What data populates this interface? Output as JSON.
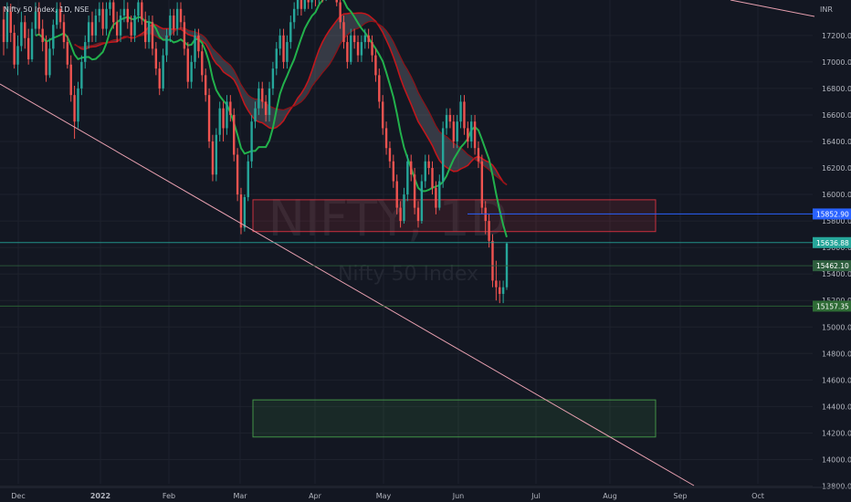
{
  "legend": "Nifty 50 Index, 1D, NSE",
  "watermark": {
    "symbol": "NIFTY, 1D",
    "name": "Nifty 50 Index"
  },
  "chart_data": {
    "type": "candlestick",
    "currency": "INR",
    "ylim": [
      13800,
      17400
    ],
    "y_ticks": [
      13800,
      14000,
      14200,
      14400,
      14600,
      14800,
      15000,
      15200,
      15400,
      15600,
      15800,
      16000,
      16200,
      16400,
      16600,
      16800,
      17000,
      17200
    ],
    "x_ticks": [
      "Dec",
      "2022",
      "Feb",
      "Mar",
      "Apr",
      "May",
      "Jun",
      "Jul",
      "Aug",
      "Sep",
      "Oct"
    ],
    "price_tags": [
      {
        "label": "15852.90",
        "value": 15852.9,
        "color": "#2962ff"
      },
      {
        "label": "15636.88",
        "value": 15636.88,
        "color": "#26a69a"
      },
      {
        "label": "15462.10",
        "value": 15462.1,
        "color": "#2e5e3e"
      },
      {
        "label": "15157.35",
        "value": 15157.35,
        "color": "#2e6b35"
      }
    ],
    "zones": [
      {
        "name": "supply-zone",
        "from": "Mar",
        "to": "Aug",
        "low": 15720,
        "high": 15960,
        "color": "#f23645"
      },
      {
        "name": "demand-zone",
        "from": "Mar",
        "to": "Aug",
        "low": 14170,
        "high": 14450,
        "color": "#4caf50"
      }
    ],
    "candles": [
      [
        17320,
        17150,
        17420,
        17050
      ],
      [
        17150,
        17380,
        17450,
        17100
      ],
      [
        17380,
        17220,
        17440,
        17150
      ],
      [
        17220,
        16980,
        17280,
        16950
      ],
      [
        16980,
        17120,
        17200,
        16900
      ],
      [
        17120,
        17300,
        17380,
        17080
      ],
      [
        17300,
        17180,
        17350,
        17100
      ],
      [
        17180,
        17020,
        17250,
        16980
      ],
      [
        17020,
        17250,
        17300,
        17000
      ],
      [
        17250,
        17380,
        17450,
        17200
      ],
      [
        17380,
        17250,
        17450,
        17200
      ],
      [
        17250,
        17150,
        17320,
        17080
      ],
      [
        17150,
        16900,
        17200,
        16850
      ],
      [
        16900,
        17100,
        17180,
        16880
      ],
      [
        17100,
        17280,
        17320,
        17050
      ],
      [
        17280,
        17400,
        17450,
        17250
      ],
      [
        17400,
        17300,
        17450,
        17250
      ],
      [
        17300,
        17150,
        17360,
        17100
      ],
      [
        17150,
        16980,
        17200,
        16950
      ],
      [
        16980,
        16750,
        17050,
        16700
      ],
      [
        16750,
        16550,
        16820,
        16420
      ],
      [
        16550,
        16800,
        16850,
        16500
      ],
      [
        16800,
        17000,
        17050,
        16750
      ],
      [
        17000,
        17150,
        17200,
        16950
      ],
      [
        17150,
        17300,
        17350,
        17100
      ],
      [
        17300,
        17200,
        17380,
        17150
      ],
      [
        17200,
        17350,
        17400,
        17150
      ],
      [
        17350,
        17400,
        17450,
        17300
      ],
      [
        17400,
        17250,
        17450,
        17200
      ],
      [
        17250,
        17400,
        17450,
        17200
      ],
      [
        17400,
        17450,
        17500,
        17350
      ],
      [
        17450,
        17300,
        17500,
        17250
      ],
      [
        17300,
        17200,
        17380,
        17150
      ],
      [
        17200,
        17350,
        17400,
        17150
      ],
      [
        17350,
        17400,
        17480,
        17300
      ],
      [
        17400,
        17300,
        17450,
        17250
      ],
      [
        17300,
        17200,
        17350,
        17150
      ],
      [
        17200,
        17350,
        17400,
        17150
      ],
      [
        17350,
        17450,
        17500,
        17300
      ],
      [
        17450,
        17320,
        17500,
        17280
      ],
      [
        17320,
        17150,
        17380,
        17100
      ],
      [
        17150,
        17300,
        17350,
        17100
      ],
      [
        17300,
        17100,
        17350,
        17050
      ],
      [
        17100,
        16950,
        17150,
        16900
      ],
      [
        16950,
        16800,
        17000,
        16750
      ],
      [
        16800,
        17050,
        17100,
        16780
      ],
      [
        17050,
        17200,
        17250,
        17000
      ],
      [
        17200,
        17350,
        17400,
        17150
      ],
      [
        17350,
        17250,
        17400,
        17200
      ],
      [
        17250,
        17400,
        17450,
        17200
      ],
      [
        17400,
        17300,
        17450,
        17250
      ],
      [
        17300,
        17100,
        17350,
        17050
      ],
      [
        17100,
        16850,
        17150,
        16800
      ],
      [
        16850,
        17000,
        17050,
        16800
      ],
      [
        17000,
        17200,
        17250,
        16950
      ],
      [
        17200,
        17080,
        17250,
        17030
      ],
      [
        17080,
        16900,
        17130,
        16850
      ],
      [
        16900,
        16750,
        16950,
        16700
      ],
      [
        16750,
        16400,
        16800,
        16350
      ],
      [
        16400,
        16150,
        16450,
        16100
      ],
      [
        16150,
        16450,
        16500,
        16100
      ],
      [
        16450,
        16650,
        16700,
        16400
      ],
      [
        16650,
        16500,
        16700,
        16400
      ],
      [
        16500,
        16700,
        16750,
        16450
      ],
      [
        16700,
        16600,
        16750,
        16550
      ],
      [
        16600,
        16300,
        16650,
        16250
      ],
      [
        16300,
        16000,
        16350,
        15950
      ],
      [
        16000,
        15750,
        16050,
        15700
      ],
      [
        15750,
        15980,
        16000,
        15720
      ],
      [
        15980,
        16250,
        16300,
        15950
      ],
      [
        16250,
        16550,
        16600,
        16200
      ],
      [
        16550,
        16650,
        16700,
        16500
      ],
      [
        16650,
        16800,
        16850,
        16600
      ],
      [
        16800,
        16700,
        16850,
        16650
      ],
      [
        16700,
        16600,
        16750,
        16550
      ],
      [
        16600,
        16800,
        16850,
        16550
      ],
      [
        16800,
        16950,
        17000,
        16750
      ],
      [
        16950,
        17100,
        17150,
        16900
      ],
      [
        17100,
        17200,
        17250,
        17050
      ],
      [
        17200,
        17000,
        17250,
        16950
      ],
      [
        17000,
        17150,
        17200,
        16950
      ],
      [
        17150,
        17300,
        17350,
        17100
      ],
      [
        17300,
        17400,
        17450,
        17250
      ],
      [
        17400,
        17500,
        17550,
        17350
      ],
      [
        17500,
        17400,
        17550,
        17350
      ],
      [
        17400,
        17520,
        17560,
        17380
      ],
      [
        17520,
        17450,
        17560,
        17400
      ],
      [
        17450,
        17550,
        17580,
        17400
      ],
      [
        17550,
        17480,
        17580,
        17420
      ],
      [
        17480,
        17560,
        17580,
        17440
      ],
      [
        17560,
        17500,
        17580,
        17450
      ],
      [
        17500,
        17560,
        17580,
        17460
      ],
      [
        17560,
        17520,
        17580,
        17470
      ],
      [
        17520,
        17560,
        17580,
        17480
      ],
      [
        17560,
        17450,
        17580,
        17420
      ],
      [
        17450,
        17300,
        17480,
        17250
      ],
      [
        17300,
        17150,
        17350,
        17100
      ],
      [
        17150,
        17000,
        17200,
        16950
      ],
      [
        17000,
        17200,
        17250,
        16980
      ],
      [
        17200,
        17150,
        17250,
        17100
      ],
      [
        17150,
        17050,
        17200,
        17000
      ],
      [
        17050,
        17150,
        17200,
        17000
      ],
      [
        17150,
        17200,
        17250,
        17100
      ],
      [
        17200,
        17150,
        17250,
        17100
      ],
      [
        17150,
        17050,
        17200,
        17000
      ],
      [
        17050,
        16900,
        17100,
        16850
      ],
      [
        16900,
        16700,
        16950,
        16650
      ],
      [
        16700,
        16500,
        16750,
        16450
      ],
      [
        16500,
        16350,
        16550,
        16300
      ],
      [
        16350,
        16250,
        16400,
        16200
      ],
      [
        16250,
        16100,
        16300,
        16050
      ],
      [
        16100,
        15900,
        16150,
        15850
      ],
      [
        15900,
        15800,
        15950,
        15750
      ],
      [
        15800,
        16000,
        16050,
        15780
      ],
      [
        16000,
        16250,
        16300,
        15950
      ],
      [
        16250,
        16150,
        16300,
        16100
      ],
      [
        16150,
        15900,
        16200,
        15850
      ],
      [
        15900,
        15800,
        15950,
        15750
      ],
      [
        15800,
        16100,
        16150,
        15780
      ],
      [
        16100,
        16250,
        16300,
        16050
      ],
      [
        16250,
        16200,
        16300,
        16150
      ],
      [
        16200,
        16050,
        16250,
        16000
      ],
      [
        16050,
        15900,
        16100,
        15850
      ],
      [
        15900,
        16100,
        16150,
        15880
      ],
      [
        16100,
        16500,
        16550,
        16050
      ],
      [
        16500,
        16600,
        16650,
        16450
      ],
      [
        16600,
        16550,
        16650,
        16500
      ],
      [
        16550,
        16400,
        16600,
        16350
      ],
      [
        16400,
        16550,
        16600,
        16350
      ],
      [
        16550,
        16700,
        16750,
        16500
      ],
      [
        16700,
        16500,
        16750,
        16450
      ],
      [
        16500,
        16400,
        16550,
        16350
      ],
      [
        16400,
        16550,
        16600,
        16350
      ],
      [
        16550,
        16350,
        16600,
        16300
      ],
      [
        16350,
        16250,
        16400,
        16200
      ],
      [
        16250,
        15900,
        16300,
        15850
      ],
      [
        15900,
        15800,
        15950,
        15700
      ],
      [
        15800,
        15650,
        15850,
        15600
      ],
      [
        15650,
        15350,
        15700,
        15300
      ],
      [
        15350,
        15300,
        15500,
        15200
      ],
      [
        15300,
        15250,
        15350,
        15180
      ],
      [
        15250,
        15300,
        15350,
        15180
      ],
      [
        15300,
        15630,
        15640,
        15280
      ]
    ]
  }
}
